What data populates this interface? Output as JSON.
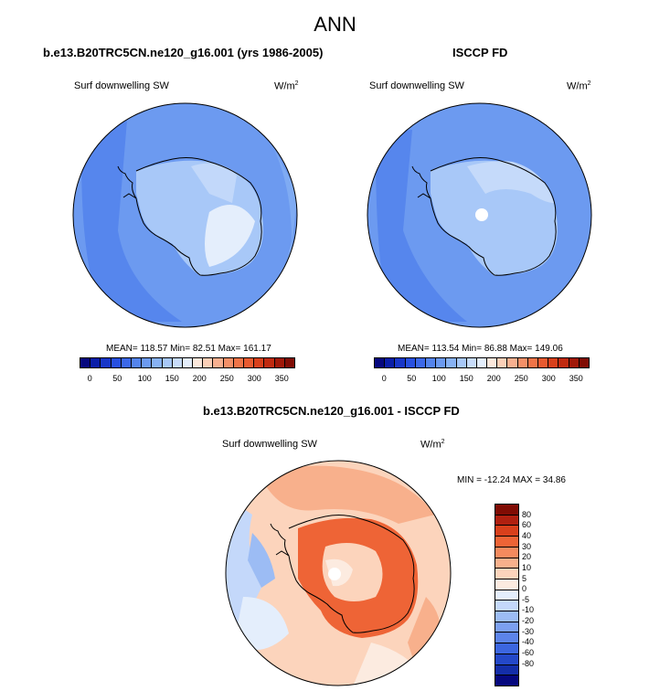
{
  "title": "ANN",
  "panels": [
    {
      "title": "b.e13.B20TRC5CN.ne120_g16.001 (yrs 1986-2005)",
      "field": "Surf downwelling SW",
      "units_base": "W/m",
      "units_exp": "2",
      "stats": "MEAN= 118.57  Min=  82.51  Max= 161.17"
    },
    {
      "title": "ISCCP FD",
      "field": "Surf downwelling SW",
      "units_base": "W/m",
      "units_exp": "2",
      "stats": "MEAN= 113.54  Min=  86.88  Max= 149.06"
    },
    {
      "title": "b.e13.B20TRC5CN.ne120_g16.001 - ISCCP FD",
      "field": "Surf downwelling SW",
      "units_base": "W/m",
      "units_exp": "2",
      "stats": "MIN = -12.24 MAX =  34.86"
    }
  ],
  "colorbar_abs": {
    "colors": [
      "#06087e",
      "#0a1ea8",
      "#1836c8",
      "#2850e0",
      "#3c68e8",
      "#5484ec",
      "#6c9af0",
      "#88b2f4",
      "#a8c8f8",
      "#c8dcfa",
      "#e4eefc",
      "#fce8dc",
      "#fcd0b8",
      "#f8b090",
      "#f49068",
      "#f07448",
      "#e85a30",
      "#d8401c",
      "#c02a10",
      "#a01808",
      "#800c04"
    ],
    "tick_labels": [
      "0",
      "50",
      "100",
      "150",
      "200",
      "250",
      "300",
      "350"
    ]
  },
  "colorbar_diff": {
    "colors": [
      "#800c04",
      "#b02010",
      "#d8401c",
      "#ee6436",
      "#f48a5e",
      "#f8b08c",
      "#fcd4bc",
      "#fcebe0",
      "#e4eefc",
      "#c4d8fa",
      "#9cbcf4",
      "#7ca0f0",
      "#5c84ea",
      "#3c66e0",
      "#2448c8",
      "#142ea8",
      "#06087e"
    ],
    "tick_labels": [
      "80",
      "60",
      "40",
      "30",
      "20",
      "10",
      "5",
      "0",
      "-5",
      "-10",
      "-20",
      "-30",
      "-40",
      "-60",
      "-80"
    ]
  }
}
